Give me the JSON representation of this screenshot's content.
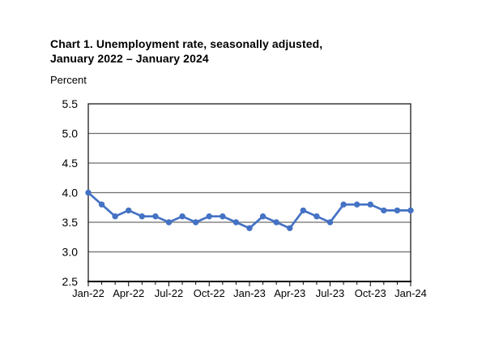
{
  "chart": {
    "title_line1": "Chart 1. Unemployment rate, seasonally adjusted,",
    "title_line2": "January 2022 – January 2024",
    "axis_unit_label": "Percent"
  },
  "chart_data": {
    "type": "line",
    "title": "Chart 1. Unemployment rate, seasonally adjusted, January 2022 – January 2024",
    "xlabel": "",
    "ylabel": "Percent",
    "categories": [
      "Jan-22",
      "Feb-22",
      "Mar-22",
      "Apr-22",
      "May-22",
      "Jun-22",
      "Jul-22",
      "Aug-22",
      "Sep-22",
      "Oct-22",
      "Nov-22",
      "Dec-22",
      "Jan-23",
      "Feb-23",
      "Mar-23",
      "Apr-23",
      "May-23",
      "Jun-23",
      "Jul-23",
      "Aug-23",
      "Sep-23",
      "Oct-23",
      "Nov-23",
      "Dec-23",
      "Jan-24"
    ],
    "values": [
      4.0,
      3.8,
      3.6,
      3.7,
      3.6,
      3.6,
      3.5,
      3.6,
      3.5,
      3.6,
      3.6,
      3.5,
      3.4,
      3.6,
      3.5,
      3.4,
      3.7,
      3.6,
      3.5,
      3.8,
      3.8,
      3.8,
      3.7,
      3.7,
      3.7
    ],
    "ylim": [
      2.5,
      5.5
    ],
    "y_ticks": [
      5.5,
      5.0,
      4.5,
      4.0,
      3.5,
      3.0,
      2.5
    ],
    "x_tick_labels": [
      "Jan-22",
      "Apr-22",
      "Jul-22",
      "Oct-22",
      "Jan-23",
      "Apr-23",
      "Jul-23",
      "Oct-23",
      "Jan-24"
    ],
    "x_tick_every_n_months": 3,
    "grid": "horizontal",
    "legend": "none",
    "marker": "circle"
  },
  "colors": {
    "series_line": "#4472c4",
    "gridline": "#6e6e6e",
    "plot_border": "#2b2b2b",
    "bottom_axis": "#000000",
    "text": "#000000",
    "background": "#ffffff"
  }
}
